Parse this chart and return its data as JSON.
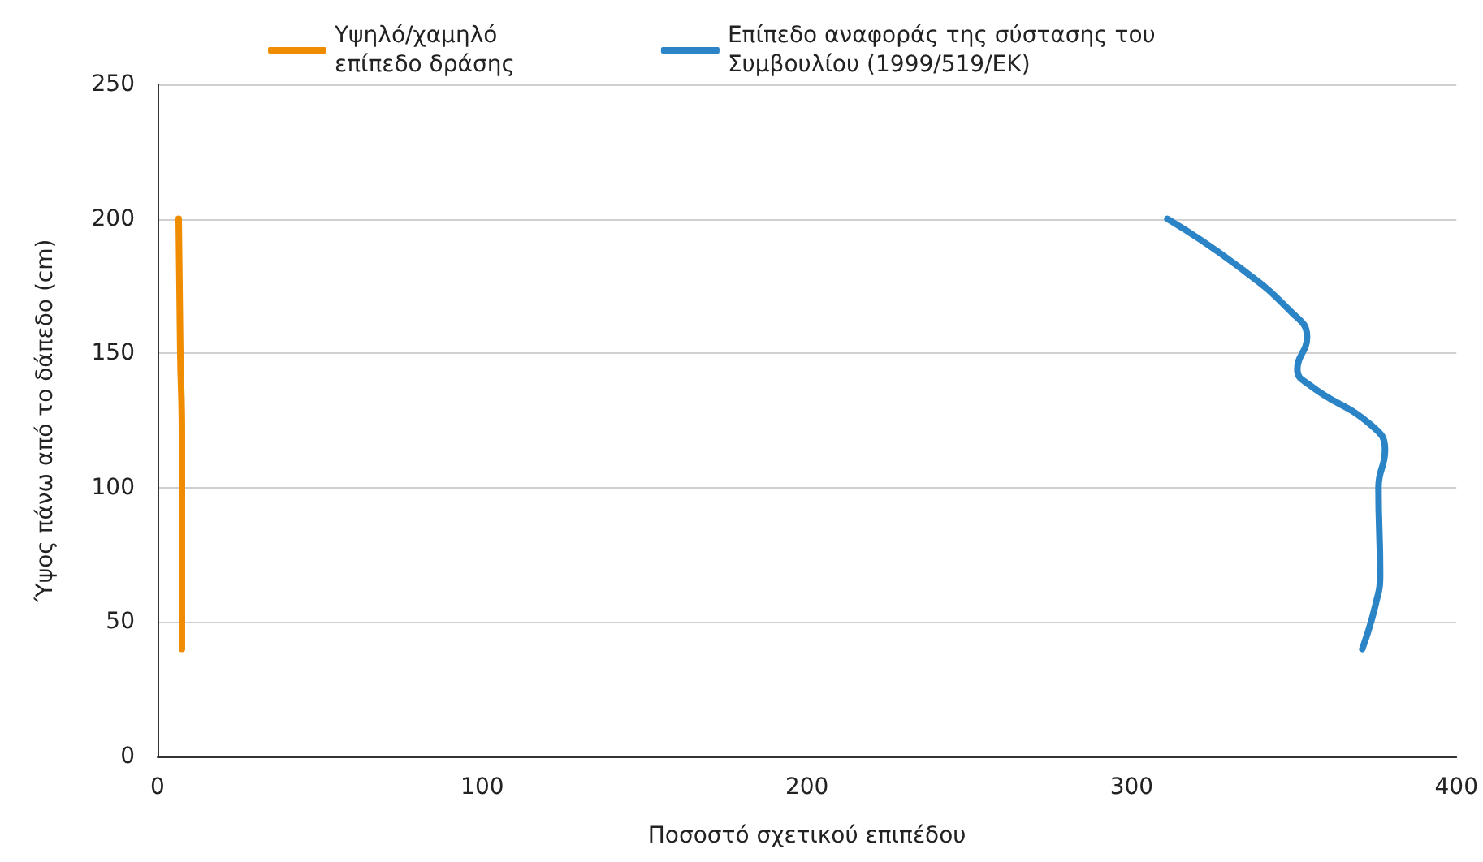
{
  "chart_data": {
    "type": "line",
    "xlabel": "Ποσοστό σχετικού επιπέδου",
    "ylabel": "Ύψος πάνω από το δάπεδο (cm)",
    "xlim": [
      0,
      400
    ],
    "xticks": [
      0,
      100,
      200,
      300,
      400
    ],
    "ylim": [
      0,
      250
    ],
    "yticks": [
      0,
      50,
      100,
      150,
      200,
      250
    ],
    "grid": "y",
    "legend": "top",
    "marker": "none",
    "line_style": "solid",
    "series": [
      {
        "name": "Υψηλό/χαμηλό\nεπίπεδο δράσης",
        "color": "#f08c00",
        "x": [
          6.5,
          7,
          7.5,
          7.5,
          7.5
        ],
        "values": [
          200,
          150,
          120,
          80,
          40
        ]
      },
      {
        "name": "Επίπεδο αναφοράς της σύστασης του\nΣυμβουλίου (1999/519/ΕΚ)",
        "color": "#2a84c6",
        "x": [
          311,
          332,
          349,
          354,
          351,
          355,
          374,
          378,
          376,
          376.5,
          375,
          371
        ],
        "values": [
          200,
          183,
          165.5,
          156,
          144,
          138,
          123,
          114,
          100,
          68,
          56,
          40
        ]
      }
    ]
  }
}
